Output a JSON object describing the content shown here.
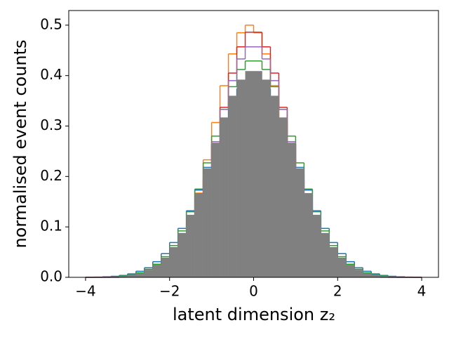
{
  "chart_data": {
    "type": "histogram",
    "x_label": "latent dimension z₂",
    "y_label": "normalised event counts",
    "bins": [
      -4,
      -3.8,
      -3.6,
      -3.4,
      -3.2,
      -3,
      -2.8,
      -2.6,
      -2.4,
      -2.2,
      -2,
      -1.8,
      -1.6,
      -1.4,
      -1.2,
      -1,
      -0.8,
      -0.6,
      -0.4,
      -0.2,
      0,
      0.2,
      0.4,
      0.6,
      0.8,
      1,
      1.2,
      1.4,
      1.6,
      1.8,
      2,
      2.2,
      2.4,
      2.6,
      2.8,
      3,
      3.2,
      3.4,
      3.6,
      3.8,
      4
    ],
    "series": [
      {
        "color": "#1f77b4",
        "histtype": "step",
        "values": [
          0.0002,
          0.0005,
          0.0011,
          0.0021,
          0.0038,
          0.0069,
          0.012,
          0.019,
          0.031,
          0.047,
          0.069,
          0.097,
          0.132,
          0.173,
          0.218,
          0.264,
          0.308,
          0.346,
          0.374,
          0.389,
          0.389,
          0.374,
          0.346,
          0.308,
          0.264,
          0.218,
          0.173,
          0.132,
          0.097,
          0.069,
          0.047,
          0.031,
          0.019,
          0.012,
          0.0069,
          0.0038,
          0.0021,
          0.0011,
          0.0005,
          0.0002
        ]
      },
      {
        "color": "#ff7f0e",
        "histtype": "step",
        "values": [
          0,
          0,
          0.0001,
          0.0002,
          0.0005,
          0.0013,
          0.003,
          0.006,
          0.0125,
          0.024,
          0.042,
          0.071,
          0.112,
          0.167,
          0.233,
          0.307,
          0.38,
          0.443,
          0.485,
          0.5,
          0.485,
          0.443,
          0.38,
          0.307,
          0.233,
          0.167,
          0.112,
          0.071,
          0.042,
          0.024,
          0.0125,
          0.006,
          0.003,
          0.0013,
          0.0005,
          0.0002,
          0.0001,
          0,
          0,
          0
        ]
      },
      {
        "color": "#2ca02c",
        "histtype": "step",
        "values": [
          0.0001,
          0.0003,
          0.0006,
          0.0013,
          0.0026,
          0.005,
          0.009,
          0.016,
          0.026,
          0.041,
          0.063,
          0.092,
          0.13,
          0.175,
          0.227,
          0.28,
          0.333,
          0.378,
          0.412,
          0.429,
          0.429,
          0.412,
          0.378,
          0.333,
          0.28,
          0.227,
          0.175,
          0.13,
          0.092,
          0.063,
          0.041,
          0.026,
          0.016,
          0.009,
          0.005,
          0.0026,
          0.0013,
          0.0006,
          0.0003,
          0.0001
        ]
      },
      {
        "color": "#d62728",
        "histtype": "step",
        "values": [
          0,
          0,
          0,
          0.0001,
          0.0003,
          0.0008,
          0.0019,
          0.0042,
          0.0086,
          0.017,
          0.031,
          0.054,
          0.088,
          0.135,
          0.195,
          0.264,
          0.337,
          0.405,
          0.457,
          0.486,
          0.486,
          0.457,
          0.405,
          0.337,
          0.264,
          0.195,
          0.135,
          0.088,
          0.054,
          0.031,
          0.017,
          0.0086,
          0.0042,
          0.0019,
          0.0008,
          0.0003,
          0.0001,
          0,
          0,
          0
        ]
      },
      {
        "color": "#9467bd",
        "histtype": "step",
        "values": [
          0,
          0,
          0.0001,
          0.0003,
          0.0008,
          0.0018,
          0.0037,
          0.0074,
          0.014,
          0.025,
          0.042,
          0.068,
          0.104,
          0.151,
          0.207,
          0.269,
          0.333,
          0.39,
          0.433,
          0.457,
          0.457,
          0.433,
          0.39,
          0.333,
          0.269,
          0.207,
          0.151,
          0.104,
          0.068,
          0.042,
          0.025,
          0.014,
          0.0074,
          0.0037,
          0.0018,
          0.0008,
          0.0003,
          0.0001,
          0,
          0
        ]
      },
      {
        "color": "#808080",
        "histtype": "stepfilled",
        "values": [
          0.0001,
          0.0003,
          0.0006,
          0.0012,
          0.0025,
          0.0047,
          0.0085,
          0.015,
          0.025,
          0.039,
          0.06,
          0.088,
          0.124,
          0.167,
          0.216,
          0.267,
          0.317,
          0.36,
          0.392,
          0.409,
          0.409,
          0.392,
          0.36,
          0.317,
          0.267,
          0.216,
          0.167,
          0.124,
          0.088,
          0.06,
          0.039,
          0.025,
          0.015,
          0.0085,
          0.0047,
          0.0025,
          0.0012,
          0.0006,
          0.0003,
          0.0001
        ]
      }
    ],
    "xlim": [
      -4.4,
      4.4
    ],
    "ylim": [
      0,
      0.529
    ],
    "xticks": [
      {
        "value": -4,
        "label": "−4"
      },
      {
        "value": -2,
        "label": "−2"
      },
      0,
      2,
      4
    ],
    "yticks": [
      {
        "value": 0,
        "label": "0.0"
      },
      0.1,
      0.2,
      0.3,
      0.4,
      0.5
    ],
    "grid": false
  }
}
